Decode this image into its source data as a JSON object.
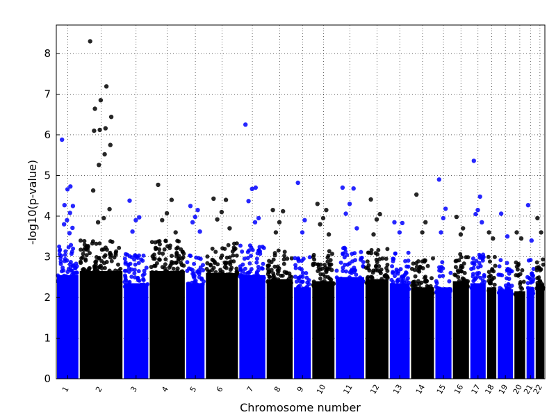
{
  "chart_data": {
    "type": "scatter",
    "title": "",
    "xlabel": "Chromosome number",
    "ylabel": "-log10(p-value)",
    "ylim": [
      0,
      8.7
    ],
    "yticks": [
      "0",
      "1",
      "2",
      "3",
      "4",
      "5",
      "6",
      "7",
      "8"
    ],
    "grid": true,
    "colors": {
      "odd": "#0000ff",
      "even": "#000000"
    },
    "chromosomes": [
      {
        "label": "1",
        "ceiling": 2.9,
        "peaks": [
          5.88,
          4.73,
          4.66,
          4.27,
          4.25,
          4.08,
          3.9,
          3.8,
          3.71,
          3.58
        ]
      },
      {
        "label": "2",
        "ceiling": 3.0,
        "peaks": [
          8.3,
          7.19,
          6.85,
          6.64,
          6.44,
          6.16,
          6.12,
          6.1,
          5.75,
          5.52,
          5.26,
          4.63,
          4.17,
          3.95,
          3.85
        ]
      },
      {
        "label": "3",
        "ceiling": 2.7,
        "peaks": [
          4.38,
          3.97,
          3.9,
          3.62
        ]
      },
      {
        "label": "4",
        "ceiling": 3.0,
        "peaks": [
          4.77,
          4.4,
          4.07,
          3.9,
          3.6
        ]
      },
      {
        "label": "5",
        "ceiling": 2.7,
        "peaks": [
          4.25,
          4.15,
          3.98,
          3.85,
          3.62
        ]
      },
      {
        "label": "6",
        "ceiling": 2.95,
        "peaks": [
          4.43,
          4.4,
          4.1,
          3.92,
          3.7
        ]
      },
      {
        "label": "7",
        "ceiling": 2.9,
        "peaks": [
          6.25,
          4.7,
          4.67,
          4.37,
          3.95,
          3.85
        ]
      },
      {
        "label": "8",
        "ceiling": 2.8,
        "peaks": [
          4.15,
          4.12,
          3.85,
          3.6
        ]
      },
      {
        "label": "9",
        "ceiling": 2.6,
        "peaks": [
          4.82,
          3.9,
          3.6
        ]
      },
      {
        "label": "10",
        "ceiling": 2.75,
        "peaks": [
          4.3,
          4.15,
          3.95,
          3.8,
          3.55
        ]
      },
      {
        "label": "11",
        "ceiling": 2.85,
        "peaks": [
          4.7,
          4.68,
          4.3,
          4.06,
          3.7
        ]
      },
      {
        "label": "12",
        "ceiling": 2.8,
        "peaks": [
          4.41,
          4.05,
          3.92,
          3.55
        ]
      },
      {
        "label": "13",
        "ceiling": 2.7,
        "peaks": [
          3.85,
          3.83,
          3.6
        ]
      },
      {
        "label": "14",
        "ceiling": 2.6,
        "peaks": [
          4.53,
          3.85,
          3.6
        ]
      },
      {
        "label": "15",
        "ceiling": 2.6,
        "peaks": [
          4.9,
          4.18,
          3.95,
          3.6
        ]
      },
      {
        "label": "16",
        "ceiling": 2.75,
        "peaks": [
          3.98,
          3.7,
          3.55
        ]
      },
      {
        "label": "17",
        "ceiling": 2.7,
        "peaks": [
          5.36,
          4.48,
          4.15,
          4.05,
          3.85
        ]
      },
      {
        "label": "18",
        "ceiling": 2.6,
        "peaks": [
          3.6,
          3.45
        ]
      },
      {
        "label": "19",
        "ceiling": 2.55,
        "peaks": [
          4.06,
          3.5
        ]
      },
      {
        "label": "20",
        "ceiling": 2.5,
        "peaks": [
          3.6,
          3.45
        ]
      },
      {
        "label": "21",
        "ceiling": 2.6,
        "peaks": [
          4.27,
          3.4
        ]
      },
      {
        "label": "22",
        "ceiling": 2.7,
        "peaks": [
          3.95,
          3.6
        ]
      }
    ]
  }
}
